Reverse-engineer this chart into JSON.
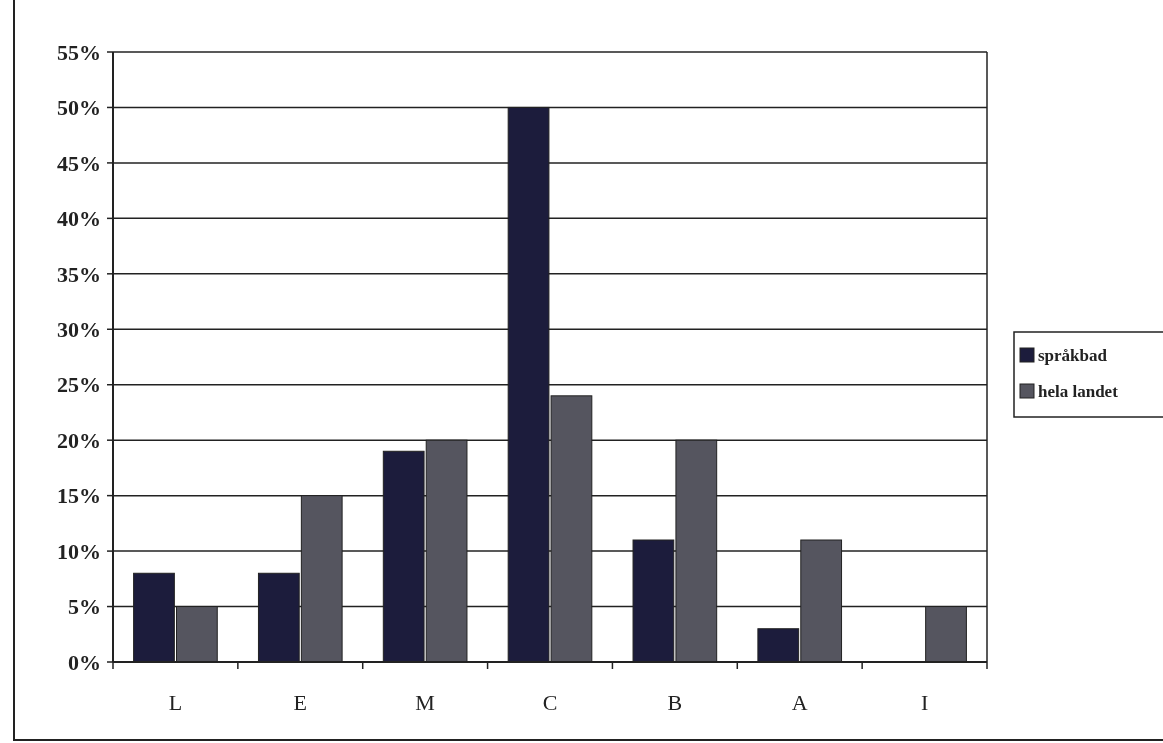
{
  "chart_data": {
    "type": "bar",
    "categories": [
      "L",
      "E",
      "M",
      "C",
      "B",
      "A",
      "I"
    ],
    "series": [
      {
        "name": "språkbad",
        "color": "#1c1c3c",
        "values": [
          8,
          8,
          19,
          50,
          11,
          3,
          0
        ]
      },
      {
        "name": "hela landet",
        "color": "#55555f",
        "values": [
          5,
          15,
          20,
          24,
          20,
          11,
          5
        ]
      }
    ],
    "ylim": [
      0,
      55
    ],
    "yticks": [
      {
        "value": 0,
        "label": "0%"
      },
      {
        "value": 5,
        "label": "5%"
      },
      {
        "value": 10,
        "label": "10%"
      },
      {
        "value": 15,
        "label": "15%"
      },
      {
        "value": 20,
        "label": "20%"
      },
      {
        "value": 25,
        "label": "25%"
      },
      {
        "value": 30,
        "label": "30%"
      },
      {
        "value": 35,
        "label": "35%"
      },
      {
        "value": 40,
        "label": "40%"
      },
      {
        "value": 45,
        "label": "45%"
      },
      {
        "value": 50,
        "label": "50%"
      },
      {
        "value": 55,
        "label": "55%"
      }
    ],
    "grid": "y",
    "legend": "right"
  }
}
